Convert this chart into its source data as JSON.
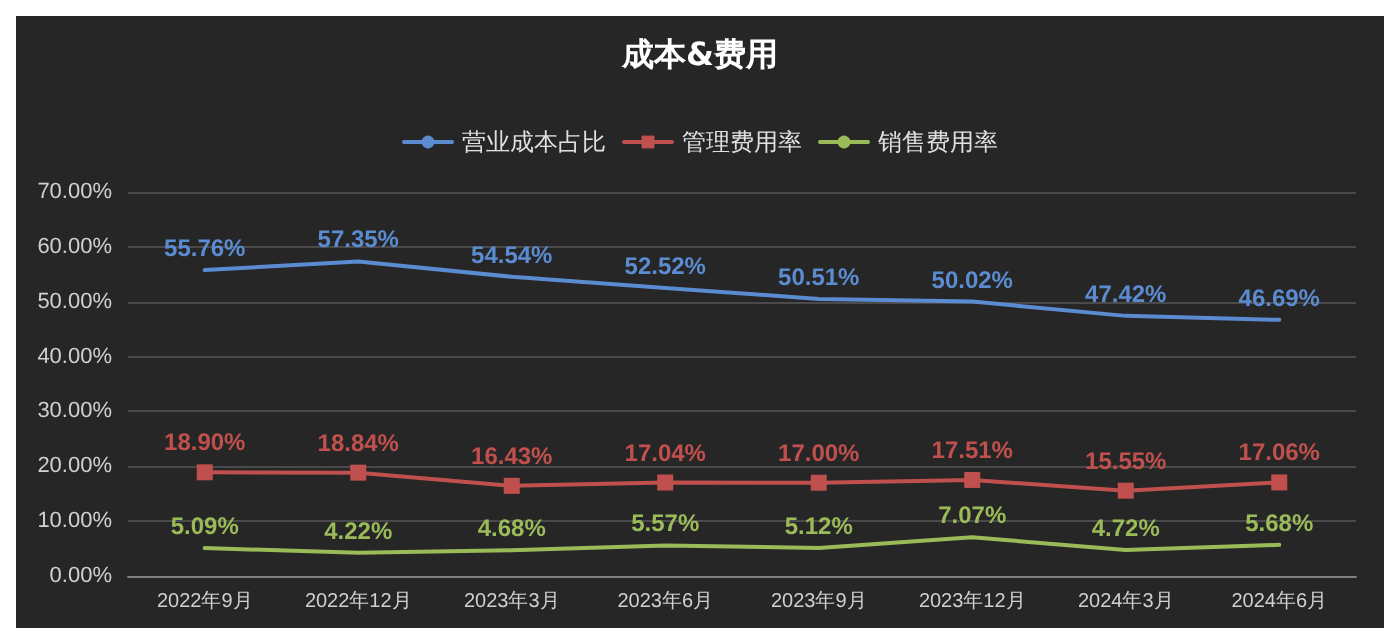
{
  "chart_data": {
    "type": "line",
    "title": "成本&费用",
    "categories": [
      "2022年9月",
      "2022年12月",
      "2023年3月",
      "2023年6月",
      "2023年9月",
      "2023年12月",
      "2024年3月",
      "2024年6月"
    ],
    "series": [
      {
        "name": "营业成本占比",
        "color": "#5b8bd0",
        "marker": "none",
        "values": [
          55.76,
          57.35,
          54.54,
          52.52,
          50.51,
          50.02,
          47.42,
          46.69
        ],
        "value_labels": [
          "55.76%",
          "57.35%",
          "54.54%",
          "52.52%",
          "50.51%",
          "50.02%",
          "47.42%",
          "46.69%"
        ]
      },
      {
        "name": "管理费用率",
        "color": "#c0504d",
        "marker": "square",
        "values": [
          18.9,
          18.84,
          16.43,
          17.04,
          17.0,
          17.51,
          15.55,
          17.06
        ],
        "value_labels": [
          "18.90%",
          "18.84%",
          "16.43%",
          "17.04%",
          "17.00%",
          "17.51%",
          "15.55%",
          "17.06%"
        ]
      },
      {
        "name": "销售费用率",
        "color": "#9bbb59",
        "marker": "none",
        "values": [
          5.09,
          4.22,
          4.68,
          5.57,
          5.12,
          7.07,
          4.72,
          5.68
        ],
        "value_labels": [
          "5.09%",
          "4.22%",
          "4.68%",
          "5.57%",
          "5.12%",
          "7.07%",
          "4.72%",
          "5.68%"
        ]
      }
    ],
    "ylim": [
      0,
      70
    ],
    "yticks": [
      {
        "value": 0,
        "label": "0.00%"
      },
      {
        "value": 10,
        "label": "10.00%"
      },
      {
        "value": 20,
        "label": "20.00%"
      },
      {
        "value": 30,
        "label": "30.00%"
      },
      {
        "value": 40,
        "label": "40.00%"
      },
      {
        "value": 50,
        "label": "50.00%"
      },
      {
        "value": 60,
        "label": "60.00%"
      },
      {
        "value": 70,
        "label": "70.00%"
      }
    ],
    "grid": "y",
    "legend": "top",
    "line_style": "solid"
  }
}
